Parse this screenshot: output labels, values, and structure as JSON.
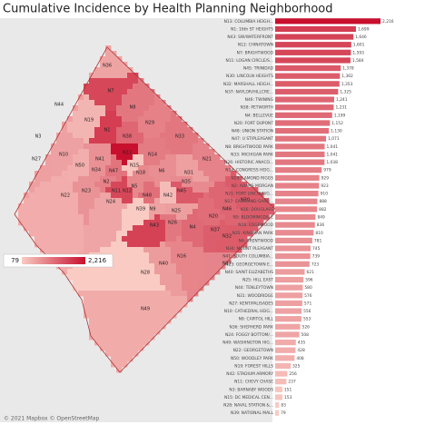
{
  "chart_data": {
    "type": "bar",
    "orientation": "horizontal",
    "title": "Cumulative Incidence by Health Planning Neighborhood",
    "categories": [
      "N13: COLUMBIA HEIGH...",
      "N1: 16th ST HEIGHTS",
      "N43: SW/WATERFRONT",
      "N12: CHINATOWN",
      "N7: BRIGHTWOOD",
      "N11: LOGAN CIRCLE/S...",
      "N45: TRINIDAD",
      "N30: LINCOLN HEIGHTS",
      "N32: MARSHALL HEIGH...",
      "N37: NAYLOR/HILLCRE...",
      "N46: TWINING",
      "N38: PETWORTH",
      "N4: BELLEVUE",
      "N20: FORT DUPONT",
      "N48: UNION STATION",
      "N47: U ST/PLEASANT",
      "N8: BRIGHTWOOD PARK",
      "N33: MICHIGAN PARK",
      "N26: HISTORIC ANACO...",
      "N14: CONGRESS HEIG...",
      "N29: LAMOND RIGGS",
      "N2: ADAMS MORGAN",
      "N21: FORT LINCOLN/G...",
      "N17: EASTLAND GARD...",
      "N16: DOUGLASS",
      "N5: BLOOMINGDALE",
      "N18: EDGEWOOD",
      "N35: KINGMAN PARK",
      "N6: BRENTWOOD",
      "N34: MOUNT PLEASANT",
      "N41: SOUTH COLUMBIA...",
      "N23: GEORGETOWN E...",
      "N40: SAINT ELIZABETHS",
      "N25: HILL EAST",
      "N44: TENLEYTOWN",
      "N31: WOODRIDGE",
      "N27: KENT/PALISADES",
      "N10: CATHEDRAL HEIG...",
      "N9: CAPITOL HILL",
      "N36: SHEPHERD PARK",
      "N24: FOGGY BOTTOM/...",
      "N49: WASHINGTON HIG...",
      "N22: GEORGETOWN",
      "N50: WOODLEY PARK",
      "N19: FOREST HILLS",
      "N42: STADIUM ARMORY",
      "N11: CHEVY CHASE",
      "N3: BARNABY WOODS",
      "N15: DC MEDICAL CEN...",
      "N28: NAVAL STATION &...",
      "N39: NATIONAL MALL"
    ],
    "values": [
      2216,
      1699,
      1646,
      1601,
      1593,
      1584,
      1378,
      1362,
      1353,
      1325,
      1241,
      1231,
      1199,
      1152,
      1130,
      1071,
      1041,
      1041,
      1038,
      979,
      929,
      923,
      910,
      888,
      882,
      849,
      836,
      810,
      781,
      745,
      739,
      723,
      621,
      596,
      580,
      576,
      571,
      556,
      553,
      526,
      508,
      435,
      428,
      408,
      325,
      256,
      237,
      151,
      153,
      83,
      79
    ],
    "value_labels": [
      "2,216",
      "1,699",
      "1,646",
      "1,601",
      "1,593",
      "1,584",
      "1,378",
      "1,362",
      "1,353",
      "1,325",
      "1,241",
      "1,231",
      "1,199",
      "1,152",
      "1,130",
      "1,071",
      "1,041",
      "1,041",
      "1,038",
      "979",
      "929",
      "923",
      "910",
      "888",
      "882",
      "849",
      "836",
      "810",
      "781",
      "745",
      "739",
      "723",
      "621",
      "596",
      "580",
      "576",
      "571",
      "556",
      "553",
      "526",
      "508",
      "435",
      "428",
      "408",
      "325",
      "256",
      "237",
      "151",
      "153",
      "83",
      "79"
    ],
    "color_low": "#f9cbc3",
    "color_high": "#c8102e",
    "colorbar_ticks": [
      79,
      {
        "value": 2216,
        "label": "2,216"
      }
    ],
    "map_labels": [
      "N36",
      "N7",
      "N44",
      "N19",
      "N1",
      "N8",
      "N29",
      "N27",
      "N3",
      "N10",
      "N50",
      "N13",
      "N38",
      "N33",
      "N41",
      "N47",
      "N2",
      "N34",
      "N14",
      "N31",
      "N6",
      "N18",
      "N5",
      "N21",
      "N9",
      "N12",
      "N11",
      "N24",
      "N23",
      "N22",
      "N48",
      "N45",
      "N42",
      "N46",
      "N26",
      "N35",
      "N30",
      "N4",
      "N32",
      "N37",
      "N20",
      "N43",
      "N39",
      "N25",
      "N17",
      "N16",
      "N40",
      "N28",
      "N49",
      "N15"
    ],
    "attribution": "© 2021 Mapbox © OpenStreetMap"
  }
}
